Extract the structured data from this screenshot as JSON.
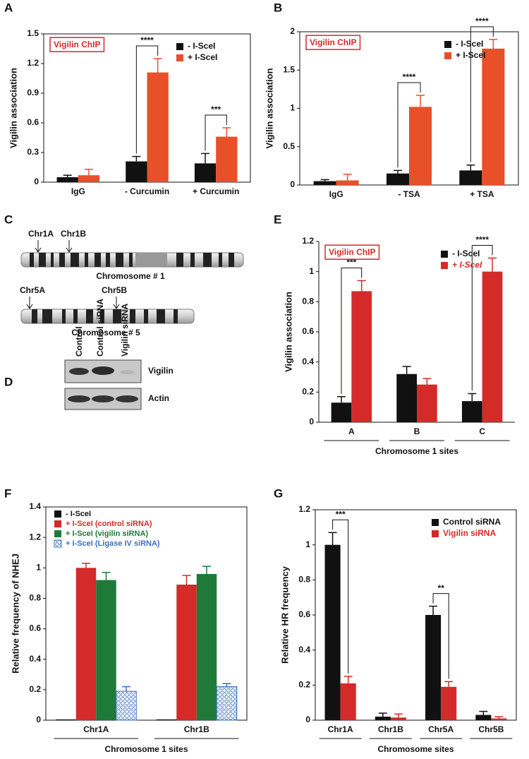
{
  "chart_data": [
    {
      "type": "bar",
      "panel": "A",
      "label_box": "Vigilin ChIP",
      "ylabel": "Vigilin association",
      "categories": [
        "IgG",
        "- Curcumin",
        "+ Curcumin"
      ],
      "series": [
        {
          "name": "-  I-SceI",
          "color": "#111111",
          "values": [
            0.05,
            0.21,
            0.19
          ],
          "errors": [
            0.02,
            0.05,
            0.1
          ]
        },
        {
          "name": "+ I-SceI",
          "color": "#e8502a",
          "values": [
            0.07,
            1.11,
            0.46
          ],
          "errors": [
            0.06,
            0.14,
            0.09
          ]
        }
      ],
      "ylim": [
        0,
        1.5
      ],
      "yticks": [
        0,
        0.3,
        0.6,
        0.9,
        1.2,
        1.5
      ],
      "legend": "upper right",
      "frame": true,
      "annotations": [
        {
          "text": "****",
          "category": "- Curcumin"
        },
        {
          "text": "***",
          "category": "+ Curcumin"
        }
      ]
    },
    {
      "type": "bar",
      "panel": "B",
      "label_box": "Vigilin ChIP",
      "ylabel": "Vigilin association",
      "categories": [
        "IgG",
        "- TSA",
        "+ TSA"
      ],
      "series": [
        {
          "name": "-  I-SceI",
          "color": "#111111",
          "values": [
            0.05,
            0.15,
            0.19
          ],
          "errors": [
            0.02,
            0.04,
            0.07
          ]
        },
        {
          "name": "+ I-SceI",
          "color": "#e8502a",
          "values": [
            0.06,
            1.02,
            1.78
          ],
          "errors": [
            0.08,
            0.15,
            0.12
          ]
        }
      ],
      "ylim": [
        0,
        2
      ],
      "yticks": [
        0,
        0.5,
        1,
        1.5,
        2
      ],
      "legend": "upper right",
      "frame": true,
      "annotations": [
        {
          "text": "****",
          "category": "- TSA"
        },
        {
          "text": "****",
          "category": "+ TSA"
        }
      ]
    },
    {
      "type": "bar",
      "panel": "E",
      "label_box": "Vigilin ChIP",
      "ylabel": "Vigilin association",
      "xlabel": "Chromosome 1 sites",
      "categories": [
        "A",
        "B",
        "C"
      ],
      "series": [
        {
          "name": "- I-SceI",
          "color": "#111111",
          "values": [
            0.13,
            0.32,
            0.14
          ],
          "errors": [
            0.04,
            0.05,
            0.05
          ]
        },
        {
          "name": "+ I-SceI",
          "color": "#d42a2a",
          "values": [
            0.87,
            0.25,
            1.0
          ],
          "errors": [
            0.07,
            0.04,
            0.09
          ]
        }
      ],
      "ylim": [
        0,
        1.2
      ],
      "yticks": [
        0,
        0.2,
        0.4,
        0.6,
        0.8,
        1,
        1.2
      ],
      "legend": "upper right",
      "frame": false,
      "legend_colored_text": true,
      "legend_italic": true,
      "annotations": [
        {
          "text": "***",
          "category": "A"
        },
        {
          "text": "****",
          "category": "C"
        }
      ]
    },
    {
      "type": "bar",
      "panel": "F",
      "ylabel": "Relative frequency of NHEJ",
      "xlabel": "Chromosome 1 sites",
      "categories": [
        "Chr1A",
        "Chr1B"
      ],
      "series": [
        {
          "name": "- I-SceI",
          "color": "#111111",
          "values": [
            0.005,
            0.005
          ],
          "errors": [
            0,
            0
          ]
        },
        {
          "name": "+ I-SceI (control siRNA)",
          "color": "#d42a2a",
          "values": [
            1.0,
            0.89
          ],
          "errors": [
            0.03,
            0.06
          ]
        },
        {
          "name": "+ I-SceI (vigilin siRNA)",
          "color": "#1f7a3a",
          "values": [
            0.92,
            0.96
          ],
          "errors": [
            0.05,
            0.05
          ]
        },
        {
          "name": "+ I-SceI (Ligase IV siRNA)",
          "color": "#3a6fc4",
          "pattern": "circles",
          "values": [
            0.19,
            0.22
          ],
          "errors": [
            0.03,
            0.02
          ]
        }
      ],
      "ylim": [
        0,
        1.4
      ],
      "yticks": [
        0,
        0.2,
        0.4,
        0.6,
        0.8,
        1,
        1.2,
        1.4
      ],
      "legend": "upper left",
      "frame": true,
      "legend_colored_text": true
    },
    {
      "type": "bar",
      "panel": "G",
      "ylabel": "Relative HR frequency",
      "xlabel": "Chromosome sites",
      "categories": [
        "Chr1A",
        "Chr1B",
        "Chr5A",
        "Chr5B"
      ],
      "series": [
        {
          "name": "Control siRNA",
          "color": "#111111",
          "values": [
            1.0,
            0.02,
            0.6,
            0.03
          ],
          "errors": [
            0.07,
            0.02,
            0.05,
            0.02
          ]
        },
        {
          "name": "Vigilin siRNA",
          "color": "#d42a2a",
          "values": [
            0.21,
            0.015,
            0.19,
            0.01
          ],
          "errors": [
            0.04,
            0.02,
            0.03,
            0.01
          ]
        }
      ],
      "ylim": [
        0,
        1.2
      ],
      "yticks": [
        0,
        0.2,
        0.4,
        0.6,
        0.8,
        1,
        1.2
      ],
      "legend": "upper right",
      "frame": true,
      "legend_colored_text": true,
      "annotations": [
        {
          "text": "***",
          "category": "Chr1A"
        },
        {
          "text": "**",
          "category": "Chr5A"
        }
      ]
    }
  ],
  "chromosome_map": {
    "panel": "C",
    "chromosomes": [
      {
        "name": "Chromosome # 1",
        "sites": [
          "Chr1A",
          "Chr1B"
        ]
      },
      {
        "name": "Chromosome # 5",
        "sites": [
          "Chr5A",
          "Chr5B"
        ]
      }
    ]
  },
  "western_blot": {
    "panel": "D",
    "lanes": [
      "Control",
      "Control siRNA",
      "Vigilin siRNA"
    ],
    "rows": [
      "Vigilin",
      "Actin"
    ]
  }
}
